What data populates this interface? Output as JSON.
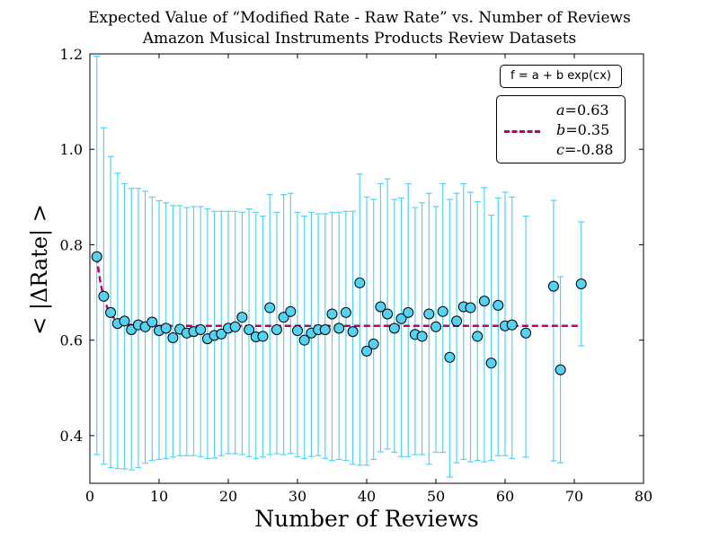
{
  "title": [
    "Expected Value of “Modified Rate - Raw Rate” vs. Number of Reviews",
    "Amazon Musical Instruments Products Review Datasets"
  ],
  "colors": {
    "marker_fill": "#55d2f2",
    "errorbar": "#55d2f2",
    "fit_line": "#c0006a",
    "marker_edge": "#000000"
  },
  "legend": {
    "formula": "f = a + b exp(cx)",
    "a_label": "a",
    "a_value": "=0.63",
    "b_label": "b",
    "b_value": "=0.35",
    "c_label": "c",
    "c_value": "=-0.88"
  },
  "chart_data": {
    "type": "scatter",
    "title": "Expected Value of “Modified Rate - Raw Rate” vs. Number of Reviews\nAmazon Musical Instruments Products Review Datasets",
    "xlabel": "Number of Reviews",
    "ylabel": "< |ΔRate| >",
    "xlim": [
      0,
      80
    ],
    "ylim": [
      0.3,
      1.2
    ],
    "xticks": [
      0,
      10,
      20,
      30,
      40,
      50,
      60,
      70,
      80
    ],
    "yticks": [
      0.4,
      0.6,
      0.8,
      1.0,
      1.2
    ],
    "ytick_labels": [
      "0.4",
      "0.6",
      "0.8",
      "1.0",
      "1.2"
    ],
    "grid": false,
    "legend_position": "top-right",
    "fit": {
      "formula": "f = a + b exp(cx)",
      "a": 0.63,
      "b": 0.35,
      "c": -0.88,
      "x_range": [
        1,
        71
      ]
    },
    "series": [
      {
        "x": [
          1,
          2,
          3,
          4,
          5,
          6,
          7,
          8,
          9,
          10,
          11,
          12,
          13,
          14,
          15,
          16,
          17,
          18,
          19,
          20,
          21,
          22,
          23,
          24,
          25,
          26,
          27,
          28,
          29,
          30,
          31,
          32,
          33,
          34,
          35,
          36,
          37,
          38,
          39,
          40,
          41,
          42,
          43,
          44,
          45,
          46,
          47,
          48,
          49,
          50,
          51,
          52,
          53,
          54,
          55,
          56,
          57,
          58,
          59,
          60,
          61,
          63,
          67,
          68,
          71
        ],
        "y": [
          0.775,
          0.692,
          0.658,
          0.635,
          0.64,
          0.622,
          0.632,
          0.628,
          0.638,
          0.62,
          0.625,
          0.605,
          0.623,
          0.615,
          0.618,
          0.622,
          0.603,
          0.61,
          0.613,
          0.625,
          0.628,
          0.648,
          0.622,
          0.607,
          0.608,
          0.668,
          0.622,
          0.648,
          0.66,
          0.62,
          0.6,
          0.615,
          0.622,
          0.622,
          0.655,
          0.625,
          0.658,
          0.618,
          0.72,
          0.577,
          0.592,
          0.67,
          0.655,
          0.625,
          0.645,
          0.658,
          0.612,
          0.608,
          0.655,
          0.628,
          0.66,
          0.564,
          0.64,
          0.67,
          0.668,
          0.608,
          0.682,
          0.552,
          0.673,
          0.63,
          0.632,
          0.615,
          0.713,
          0.538,
          0.718
        ],
        "yerr_low": [
          0.36,
          0.34,
          0.333,
          0.331,
          0.33,
          0.328,
          0.333,
          0.342,
          0.348,
          0.35,
          0.352,
          0.355,
          0.358,
          0.358,
          0.358,
          0.356,
          0.352,
          0.353,
          0.358,
          0.362,
          0.362,
          0.36,
          0.356,
          0.352,
          0.355,
          0.36,
          0.362,
          0.36,
          0.363,
          0.356,
          0.352,
          0.356,
          0.358,
          0.352,
          0.348,
          0.35,
          0.348,
          0.34,
          0.338,
          0.338,
          0.35,
          0.366,
          0.372,
          0.365,
          0.356,
          0.356,
          0.36,
          0.36,
          0.34,
          0.365,
          0.365,
          0.313,
          0.343,
          0.35,
          0.345,
          0.348,
          0.345,
          0.348,
          0.358,
          0.358,
          0.352,
          0.355,
          0.347,
          0.343,
          0.588
        ],
        "yerr_high": [
          1.195,
          1.045,
          0.985,
          0.95,
          0.928,
          0.918,
          0.918,
          0.912,
          0.9,
          0.892,
          0.888,
          0.882,
          0.882,
          0.878,
          0.88,
          0.88,
          0.875,
          0.87,
          0.87,
          0.87,
          0.87,
          0.868,
          0.875,
          0.868,
          0.86,
          0.905,
          0.868,
          0.905,
          0.908,
          0.868,
          0.86,
          0.868,
          0.865,
          0.865,
          0.868,
          0.868,
          0.87,
          0.87,
          0.948,
          0.9,
          0.895,
          0.928,
          0.938,
          0.895,
          0.898,
          0.928,
          0.878,
          0.888,
          0.908,
          0.88,
          0.928,
          0.895,
          0.908,
          0.928,
          0.91,
          0.89,
          0.92,
          0.862,
          0.898,
          0.91,
          0.9,
          0.86,
          0.893,
          0.733,
          0.848
        ]
      }
    ]
  }
}
